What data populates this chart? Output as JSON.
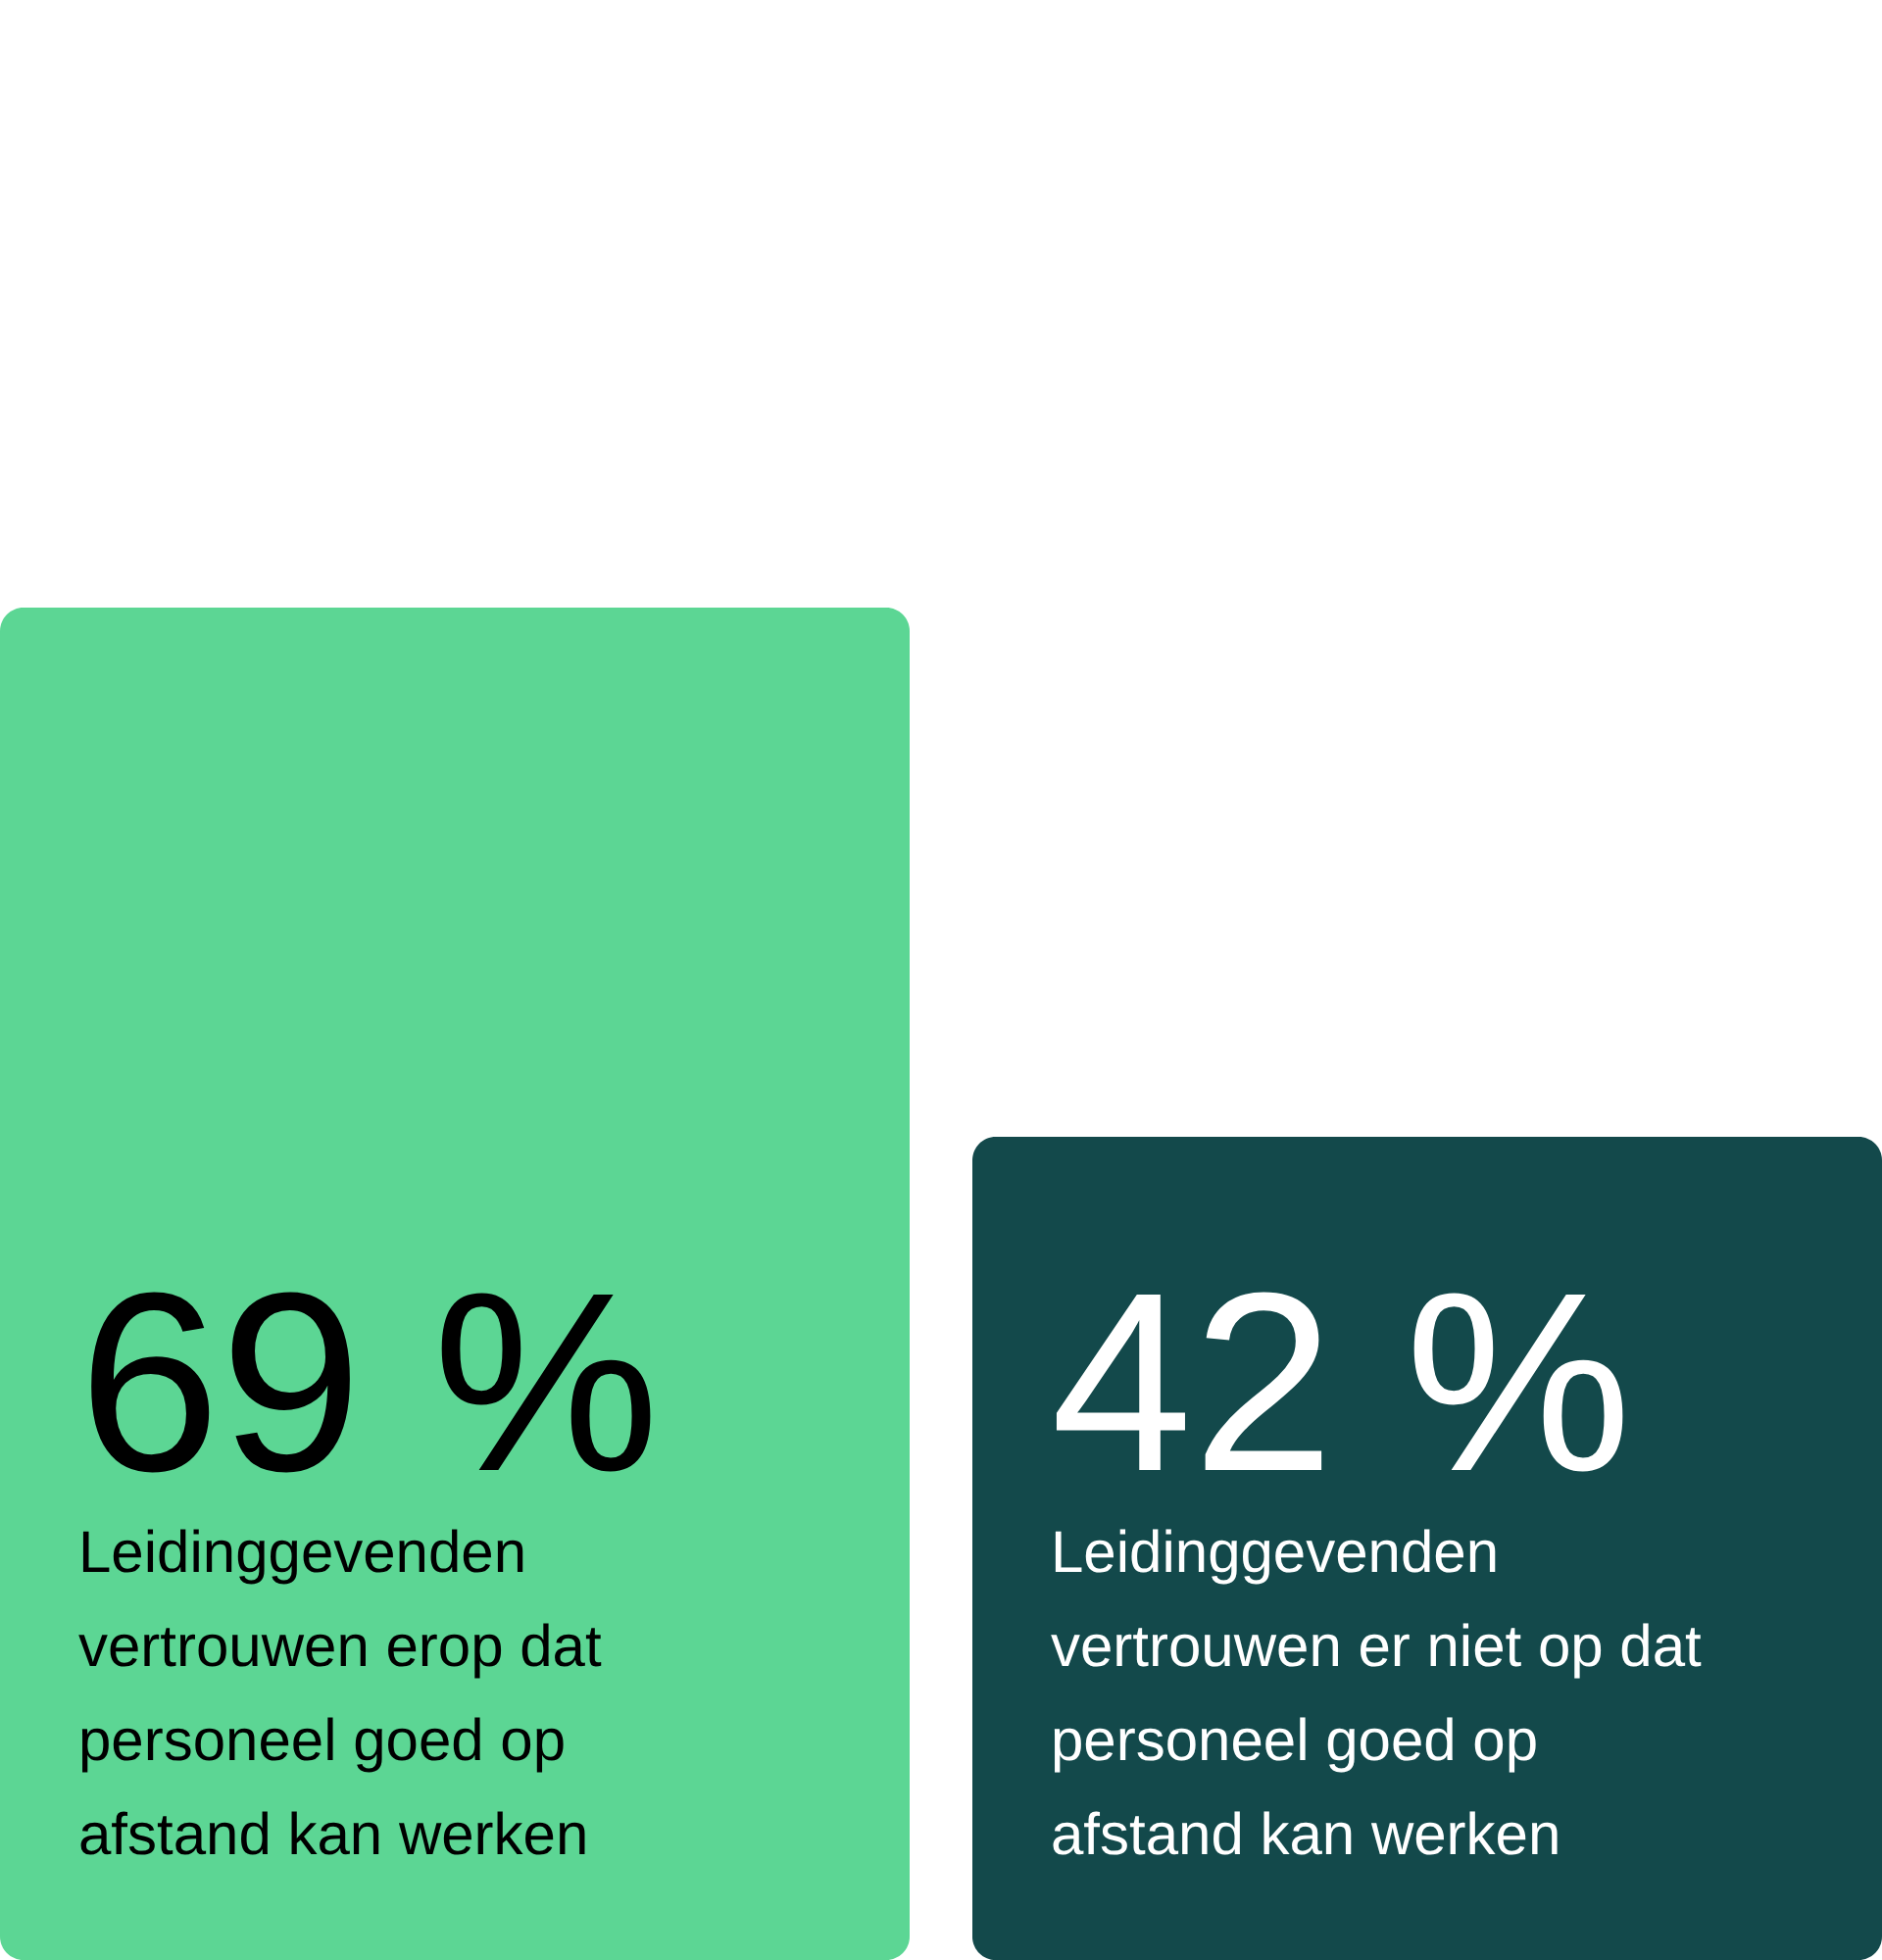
{
  "chart_data": {
    "type": "bar",
    "categories": [
      "Leidinggevenden\nvertrouwen erop dat\npersoneel goed op\nafstand kan werken",
      "Leidinggevenden\nvertrouwen er niet op dat\npersoneel goed op\nafstand kan werken"
    ],
    "values": [
      69,
      42
    ],
    "colors": [
      "#5cd694",
      "#13494b"
    ],
    "value_labels": [
      "69 %",
      "42 %"
    ],
    "ylim": [
      0,
      100
    ]
  }
}
